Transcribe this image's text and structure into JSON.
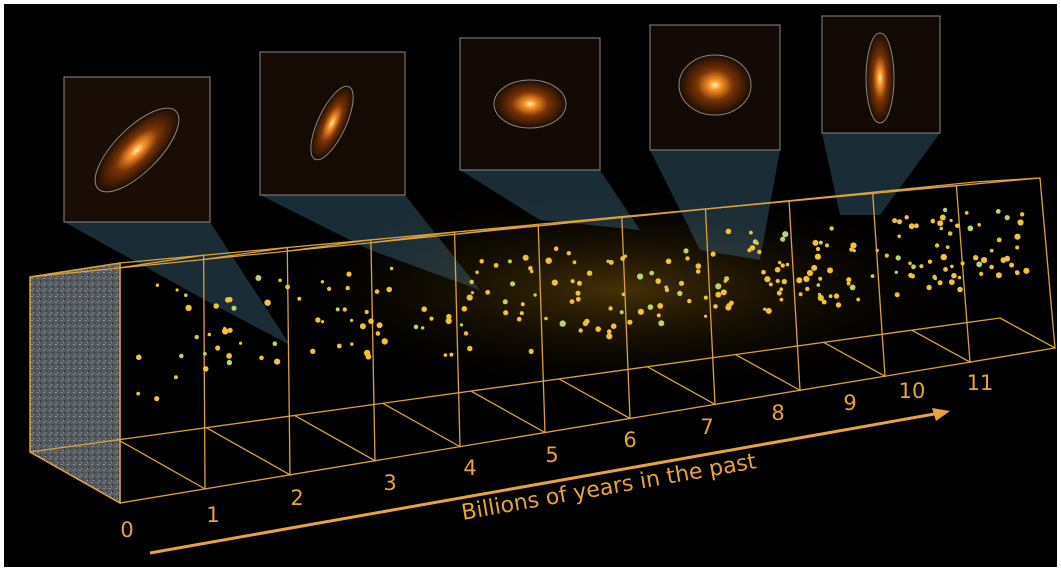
{
  "axis": {
    "label": "Billions of years in the past",
    "ticks": [
      "0",
      "1",
      "2",
      "3",
      "4",
      "5",
      "6",
      "7",
      "8",
      "9",
      "10",
      "11"
    ]
  }
}
